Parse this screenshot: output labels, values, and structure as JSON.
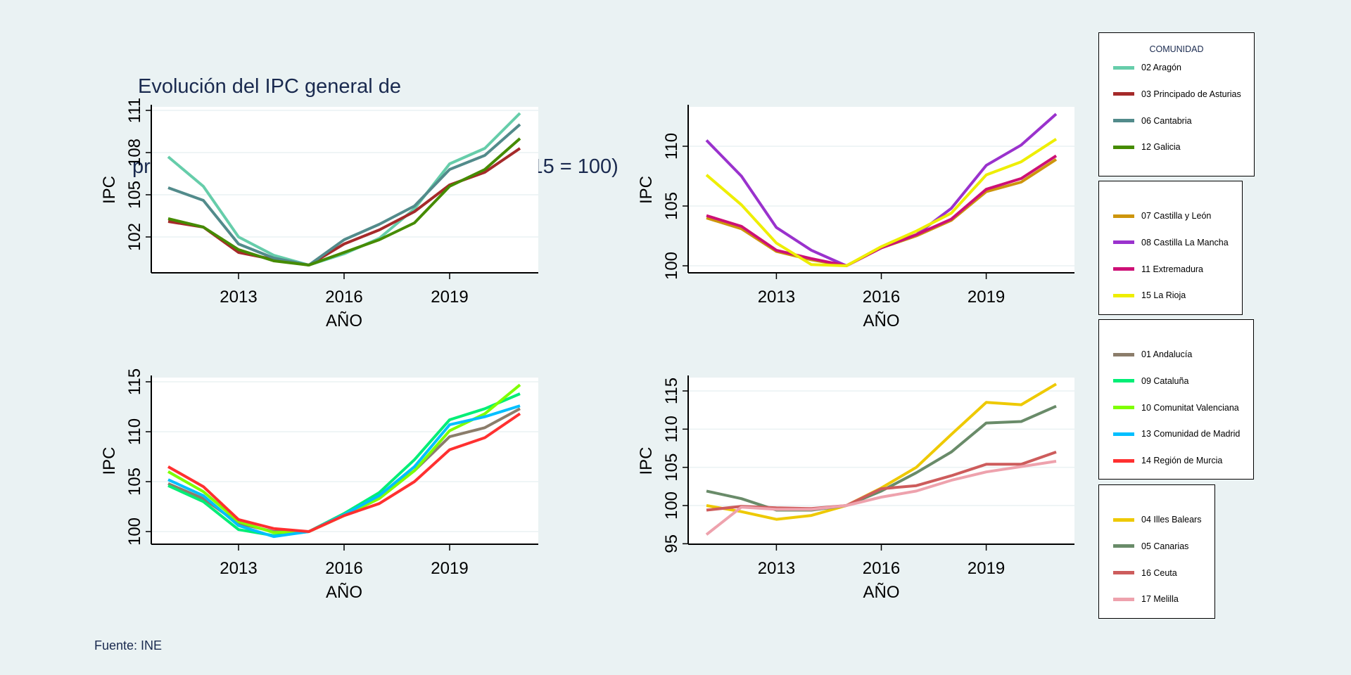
{
  "title": {
    "line1": "Evolución del IPC general de",
    "line2": "precios de alquiler por CCAA agrupadas (2015 = 100)"
  },
  "footer": "Fuente: INE",
  "legend_title": "COMUNIDAD",
  "chart_data": [
    {
      "type": "line",
      "title": "",
      "xlabel": "AÑO",
      "ylabel": "IPC",
      "x": [
        2011,
        2012,
        2013,
        2014,
        2015,
        2016,
        2017,
        2018,
        2019,
        2020,
        2021
      ],
      "xticks": [
        2013,
        2016,
        2019
      ],
      "yticks": [
        102,
        105,
        108,
        111
      ],
      "ylim": [
        99.5,
        111.9
      ],
      "grid": true,
      "legend": "right",
      "series": [
        {
          "name": "02 Aragón",
          "color": "#66cdaa",
          "values": [
            107.7,
            105.6,
            102.0,
            100.7,
            100,
            100.8,
            101.9,
            104.0,
            107.2,
            108.3,
            110.8
          ]
        },
        {
          "name": "03 Principado de Asturias",
          "color": "#a52a2a",
          "values": [
            103.1,
            102.7,
            100.9,
            100.4,
            100,
            101.5,
            102.5,
            103.8,
            105.7,
            106.6,
            108.3
          ]
        },
        {
          "name": "06 Cantabria",
          "color": "#528b8b",
          "values": [
            105.5,
            104.6,
            101.5,
            100.5,
            100,
            101.8,
            102.9,
            104.2,
            106.8,
            107.8,
            110.0
          ]
        },
        {
          "name": "12 Galicia",
          "color": "#458b00",
          "values": [
            103.3,
            102.7,
            101.1,
            100.3,
            100,
            100.9,
            101.8,
            103.0,
            105.6,
            106.8,
            109.0
          ]
        }
      ]
    },
    {
      "type": "line",
      "title": "",
      "xlabel": "AÑO",
      "ylabel": "IPC",
      "x": [
        2011,
        2012,
        2013,
        2014,
        2015,
        2016,
        2017,
        2018,
        2019,
        2020,
        2021
      ],
      "xticks": [
        2013,
        2016,
        2019
      ],
      "yticks": [
        100,
        105,
        110
      ],
      "ylim": [
        99.5,
        113.7
      ],
      "grid": true,
      "legend": "right",
      "series": [
        {
          "name": "07 Castilla y León",
          "color": "#cd950c",
          "values": [
            104.0,
            103.1,
            101.2,
            100.5,
            100,
            101.5,
            102.5,
            103.8,
            106.2,
            107.0,
            108.9
          ]
        },
        {
          "name": "08 Castilla La Mancha",
          "color": "#9a32cd",
          "values": [
            110.5,
            107.5,
            103.2,
            101.3,
            100,
            101.5,
            102.6,
            104.8,
            108.4,
            110.1,
            112.7
          ]
        },
        {
          "name": "11 Extremadura",
          "color": "#cd1076",
          "values": [
            104.2,
            103.3,
            101.3,
            100.6,
            100,
            101.5,
            102.6,
            103.9,
            106.4,
            107.3,
            109.2
          ]
        },
        {
          "name": "15 La Rioja",
          "color": "#eeee00",
          "values": [
            107.6,
            105.1,
            101.9,
            100.1,
            100,
            101.6,
            102.9,
            104.4,
            107.6,
            108.7,
            110.6
          ]
        }
      ]
    },
    {
      "type": "line",
      "title": "",
      "xlabel": "AÑO",
      "ylabel": "IPC",
      "x": [
        2011,
        2012,
        2013,
        2014,
        2015,
        2016,
        2017,
        2018,
        2019,
        2020,
        2021
      ],
      "xticks": [
        2013,
        2016,
        2019
      ],
      "yticks": [
        100,
        105,
        110,
        115
      ],
      "ylim": [
        99.2,
        115.6
      ],
      "grid": true,
      "legend": "right",
      "series": [
        {
          "name": "01 Andalucía",
          "color": "#8b7d6b",
          "values": [
            104.8,
            103.3,
            100.8,
            100.0,
            100,
            101.8,
            103.5,
            106.1,
            109.5,
            110.4,
            112.3
          ]
        },
        {
          "name": "09 Cataluña",
          "color": "#00ee76",
          "values": [
            104.6,
            103.0,
            100.2,
            99.6,
            100,
            101.8,
            103.9,
            107.2,
            111.2,
            112.3,
            113.8
          ]
        },
        {
          "name": "10 Comunitat Valenciana",
          "color": "#7fff00",
          "values": [
            106.0,
            104.0,
            101.0,
            99.9,
            100,
            101.6,
            103.3,
            106.1,
            110.1,
            111.8,
            114.7
          ]
        },
        {
          "name": "13 Comunidad de Madrid",
          "color": "#00bfff",
          "values": [
            105.2,
            103.6,
            100.6,
            99.5,
            100,
            101.7,
            103.6,
            106.5,
            110.7,
            111.5,
            112.6
          ]
        },
        {
          "name": "14 Región de Murcia",
          "color": "#ff3030",
          "values": [
            106.5,
            104.5,
            101.2,
            100.3,
            100,
            101.6,
            102.8,
            105.0,
            108.2,
            109.4,
            111.8
          ]
        }
      ]
    },
    {
      "type": "line",
      "title": "",
      "xlabel": "AÑO",
      "ylabel": "IPC",
      "x": [
        2011,
        2012,
        2013,
        2014,
        2015,
        2016,
        2017,
        2018,
        2019,
        2020,
        2021
      ],
      "xticks": [
        2013,
        2016,
        2019
      ],
      "yticks": [
        95,
        100,
        105,
        110,
        115
      ],
      "ylim": [
        95,
        116.8
      ],
      "grid": true,
      "legend": "right",
      "series": [
        {
          "name": "04 Illes Balears",
          "color": "#eec900",
          "values": [
            100.0,
            99.2,
            98.2,
            98.7,
            100,
            102.3,
            105.0,
            109.3,
            113.5,
            113.2,
            115.9
          ]
        },
        {
          "name": "05 Canarias",
          "color": "#698b69",
          "values": [
            101.9,
            100.9,
            99.4,
            99.4,
            100,
            101.9,
            104.3,
            107.0,
            110.8,
            111.0,
            113.0
          ]
        },
        {
          "name": "16 Ceuta",
          "color": "#cd5c5c",
          "values": [
            99.4,
            99.9,
            99.7,
            99.6,
            100,
            102.2,
            102.6,
            103.9,
            105.4,
            105.4,
            107.0
          ]
        },
        {
          "name": "17 Melilla",
          "color": "#eea2ad",
          "values": [
            96.2,
            99.8,
            99.5,
            99.5,
            100,
            101.1,
            101.9,
            103.3,
            104.4,
            105.1,
            105.8
          ]
        }
      ]
    }
  ]
}
